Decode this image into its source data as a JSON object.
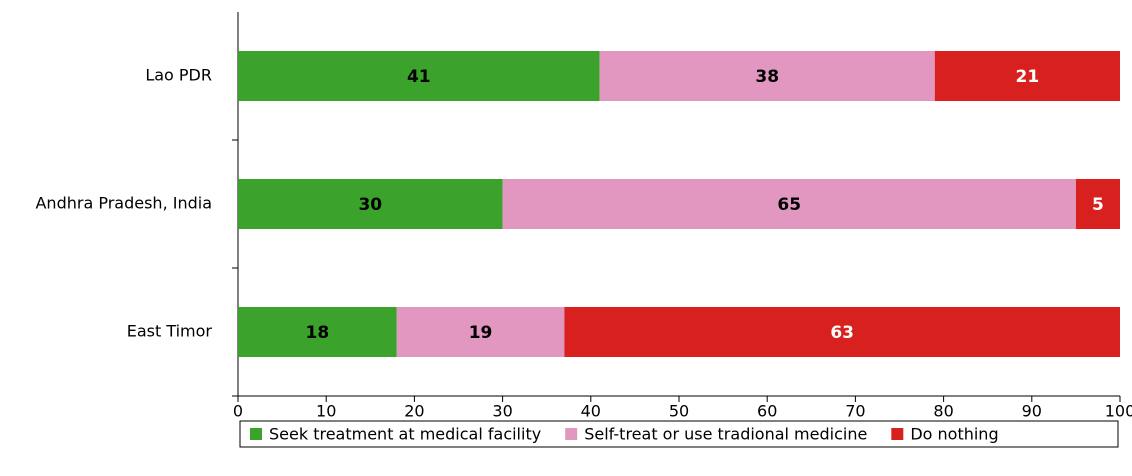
{
  "chart_data": {
    "type": "bar",
    "orientation": "horizontal",
    "stacked": true,
    "categories": [
      "Lao PDR",
      "Andhra Pradesh, India",
      "East Timor"
    ],
    "series": [
      {
        "name": "Seek treatment at medical facility",
        "color": "#3ba22b",
        "label_color": "#000000",
        "values": [
          41,
          30,
          18
        ]
      },
      {
        "name": "Self-treat or use tradional medicine",
        "color": "#e297c1",
        "label_color": "#000000",
        "values": [
          38,
          65,
          19
        ]
      },
      {
        "name": "Do nothing",
        "color": "#d8211e",
        "label_color": "#ffffff",
        "values": [
          21,
          5,
          63
        ]
      }
    ],
    "xlim": [
      0,
      100
    ],
    "xticks": [
      0,
      10,
      20,
      30,
      40,
      50,
      60,
      70,
      80,
      90,
      100
    ],
    "legend": "bottom"
  }
}
